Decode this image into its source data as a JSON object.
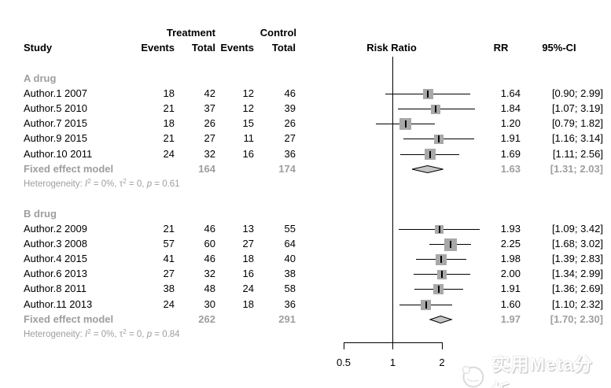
{
  "header": {
    "study": "Study",
    "treatment": "Treatment",
    "control": "Control",
    "events": "Events",
    "total": "Total",
    "risk_ratio": "Risk Ratio",
    "rr": "RR",
    "ci": "95%-CI"
  },
  "axis": {
    "tick_labels": [
      "0.5",
      "1",
      "2"
    ]
  },
  "watermark": {
    "text": "实用Meta分析",
    "icon": "bird-logo-icon"
  },
  "colors": {
    "square": "#a8a8a8",
    "diamond_fill": "#c6c6c6",
    "gray_text": "#9e9e9e",
    "line": "#000000"
  },
  "chart_data": {
    "type": "scatter",
    "subtype": "forest-plot",
    "effect_measure": "Risk Ratio",
    "model": "Fixed effect",
    "x_scale": "log",
    "axis_ticks": [
      0.5,
      1,
      2
    ],
    "xlim": [
      0.5,
      2
    ],
    "groups": [
      {
        "label": "A drug",
        "studies": [
          {
            "label": "Author.1 2007",
            "t_events": 18,
            "t_total": 42,
            "c_events": 12,
            "c_total": 46,
            "rr": 1.64,
            "ci_lo": 0.9,
            "ci_hi": 2.99,
            "w": 13
          },
          {
            "label": "Author.5 2010",
            "t_events": 21,
            "t_total": 37,
            "c_events": 12,
            "c_total": 39,
            "rr": 1.84,
            "ci_lo": 1.07,
            "ci_hi": 3.19,
            "w": 12
          },
          {
            "label": "Author.7 2015",
            "t_events": 18,
            "t_total": 26,
            "c_events": 15,
            "c_total": 26,
            "rr": 1.2,
            "ci_lo": 0.79,
            "ci_hi": 1.82,
            "w": 15
          },
          {
            "label": "Author.9 2015",
            "t_events": 21,
            "t_total": 27,
            "c_events": 11,
            "c_total": 27,
            "rr": 1.91,
            "ci_lo": 1.16,
            "ci_hi": 3.14,
            "w": 12
          },
          {
            "label": "Author.10 2011",
            "t_events": 24,
            "t_total": 32,
            "c_events": 16,
            "c_total": 36,
            "rr": 1.69,
            "ci_lo": 1.11,
            "ci_hi": 2.56,
            "w": 14
          }
        ],
        "fixed": {
          "label": "Fixed effect model",
          "t_total": 164,
          "c_total": 174,
          "rr": 1.63,
          "ci_lo": 1.31,
          "ci_hi": 2.03
        },
        "heterogeneity": [
          {
            "t": "Heterogeneity: "
          },
          {
            "t": "I",
            "i": 1
          },
          {
            "t": "2",
            "sup": 1
          },
          {
            "t": " = 0%, "
          },
          {
            "t": "τ"
          },
          {
            "t": "2",
            "sup": 1
          },
          {
            "t": " = 0, "
          },
          {
            "t": "p",
            "i": 1
          },
          {
            "t": " = 0.61"
          }
        ]
      },
      {
        "label": "B drug",
        "studies": [
          {
            "label": "Author.2 2009",
            "t_events": 21,
            "t_total": 46,
            "c_events": 13,
            "c_total": 55,
            "rr": 1.93,
            "ci_lo": 1.09,
            "ci_hi": 3.42,
            "w": 11
          },
          {
            "label": "Author.3 2008",
            "t_events": 57,
            "t_total": 60,
            "c_events": 27,
            "c_total": 64,
            "rr": 2.25,
            "ci_lo": 1.68,
            "ci_hi": 3.02,
            "w": 16
          },
          {
            "label": "Author.4 2015",
            "t_events": 41,
            "t_total": 46,
            "c_events": 18,
            "c_total": 40,
            "rr": 1.98,
            "ci_lo": 1.39,
            "ci_hi": 2.83,
            "w": 14
          },
          {
            "label": "Author.6 2013",
            "t_events": 27,
            "t_total": 32,
            "c_events": 16,
            "c_total": 38,
            "rr": 2.0,
            "ci_lo": 1.34,
            "ci_hi": 2.99,
            "w": 12
          },
          {
            "label": "Author.8 2011",
            "t_events": 38,
            "t_total": 48,
            "c_events": 24,
            "c_total": 58,
            "rr": 1.91,
            "ci_lo": 1.36,
            "ci_hi": 2.69,
            "w": 13
          },
          {
            "label": "Author.11 2013",
            "t_events": 24,
            "t_total": 30,
            "c_events": 18,
            "c_total": 36,
            "rr": 1.6,
            "ci_lo": 1.1,
            "ci_hi": 2.32,
            "w": 13
          }
        ],
        "fixed": {
          "label": "Fixed effect model",
          "t_total": 262,
          "c_total": 291,
          "rr": 1.97,
          "ci_lo": 1.7,
          "ci_hi": 2.3
        },
        "heterogeneity": [
          {
            "t": "Heterogeneity: "
          },
          {
            "t": "I",
            "i": 1
          },
          {
            "t": "2",
            "sup": 1
          },
          {
            "t": " = 0%, "
          },
          {
            "t": "τ"
          },
          {
            "t": "2",
            "sup": 1
          },
          {
            "t": " = 0, "
          },
          {
            "t": "p",
            "i": 1
          },
          {
            "t": " = 0.84"
          }
        ]
      }
    ]
  }
}
